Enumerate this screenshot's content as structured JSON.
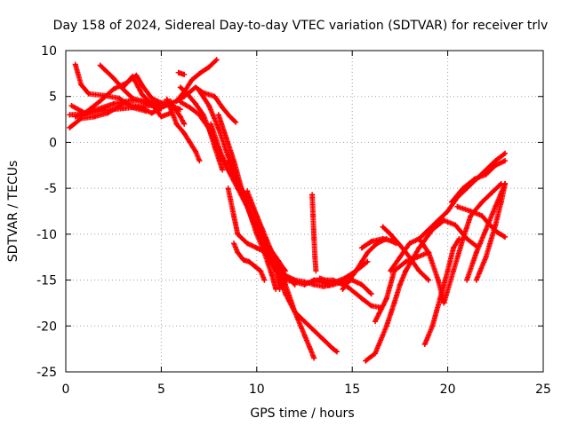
{
  "chart_data": {
    "type": "scatter",
    "title": "Day 158 of 2024, Sidereal Day-to-day VTEC variation (SDTVAR) for receiver trlv",
    "xlabel": "GPS time / hours",
    "ylabel": "SDTVAR / TECUs",
    "xlim": [
      0,
      25
    ],
    "ylim": [
      -25,
      10
    ],
    "xticks": [
      "0",
      "5",
      "10",
      "15",
      "20",
      "25"
    ],
    "yticks": [
      "10",
      "5",
      "0",
      "-5",
      "-10",
      "-15",
      "-20",
      "-25"
    ],
    "grid": true,
    "marker": "+",
    "color": "#ff0000",
    "series": [
      {
        "x": [
          0.2,
          0.8,
          1.5,
          2.2,
          3.0,
          3.8,
          4.5,
          5.0
        ],
        "y": [
          1.6,
          2.6,
          2.8,
          3.2,
          4.2,
          3.9,
          3.2,
          3.7
        ]
      },
      {
        "x": [
          0.2,
          1.0,
          2.0,
          3.0,
          4.0,
          5.0
        ],
        "y": [
          3.0,
          3.1,
          3.5,
          3.7,
          3.9,
          4.2
        ]
      },
      {
        "x": [
          0.5,
          0.8,
          1.2,
          2.0,
          2.8,
          3.5,
          4.2
        ],
        "y": [
          8.5,
          6.3,
          5.3,
          5.1,
          4.8,
          3.8,
          3.4
        ]
      },
      {
        "x": [
          0.3,
          1.0,
          1.8,
          2.5,
          3.2,
          3.7,
          4.0,
          4.5,
          5.0,
          5.5
        ],
        "y": [
          4.0,
          3.2,
          4.5,
          5.8,
          6.5,
          7.3,
          6.2,
          4.8,
          4.3,
          4.5
        ]
      },
      {
        "x": [
          1.8,
          2.5,
          3.0,
          3.5,
          4.0,
          4.5,
          5.0,
          5.5,
          6.0,
          6.2
        ],
        "y": [
          8.4,
          7.0,
          5.8,
          4.8,
          4.5,
          4.0,
          3.8,
          4.3,
          2.8,
          2.0
        ]
      },
      {
        "x": [
          0.5,
          1.5,
          2.5,
          3.5,
          4.5,
          5.5,
          6.0
        ],
        "y": [
          2.8,
          3.5,
          4.2,
          4.6,
          4.3,
          4.0,
          3.6
        ]
      },
      {
        "x": [
          3.0,
          3.5,
          4.0,
          4.5,
          5.0,
          5.5
        ],
        "y": [
          6.0,
          7.2,
          5.2,
          4.2,
          2.8,
          3.2
        ]
      },
      {
        "x": [
          4.3,
          5.0,
          5.8,
          6.2,
          6.6,
          7.0,
          7.5,
          7.9
        ],
        "y": [
          4.4,
          3.8,
          4.5,
          5.5,
          6.8,
          7.5,
          8.2,
          9.0
        ]
      },
      {
        "x": [
          5.3,
          5.8,
          6.2,
          6.5,
          6.8,
          7.0
        ],
        "y": [
          4.7,
          2.0,
          1.0,
          0.0,
          -1.0,
          -2.0
        ]
      },
      {
        "x": [
          5.8,
          6.2,
          6.8,
          7.2,
          7.8,
          8.2,
          8.6,
          8.9
        ],
        "y": [
          4.5,
          5.0,
          6.0,
          5.4,
          5.0,
          3.8,
          2.8,
          2.2
        ]
      },
      {
        "x": [
          5.9,
          6.2
        ],
        "y": [
          7.6,
          7.4
        ]
      },
      {
        "x": [
          6.0,
          6.5,
          7.0,
          7.5,
          7.8,
          8.2
        ],
        "y": [
          4.4,
          3.8,
          3.0,
          1.5,
          -0.5,
          -3.0
        ]
      },
      {
        "x": [
          6.0,
          6.4,
          6.8,
          7.2,
          7.6,
          8.0,
          8.5,
          9.0,
          9.5,
          10.0,
          10.3
        ],
        "y": [
          6.0,
          5.2,
          4.2,
          3.0,
          1.0,
          -1.0,
          -3.0,
          -4.5,
          -6.0,
          -8.0,
          -10.0
        ]
      },
      {
        "x": [
          7.0,
          7.5,
          8.0,
          8.5,
          9.0,
          9.5,
          10.0,
          10.5,
          11.0,
          11.5
        ],
        "y": [
          5.6,
          4.0,
          1.5,
          -1.5,
          -4.0,
          -7.0,
          -9.0,
          -11.0,
          -12.5,
          -14.0
        ]
      },
      {
        "x": [
          7.6,
          8.0,
          8.5,
          9.0,
          9.5,
          10.0,
          10.5,
          11.0,
          11.2
        ],
        "y": [
          2.0,
          -0.5,
          -3.0,
          -5.0,
          -7.0,
          -9.5,
          -12.0,
          -14.0,
          -16.0
        ]
      },
      {
        "x": [
          8.0,
          8.4,
          8.8,
          9.2,
          9.6,
          10.0,
          10.4,
          10.8,
          11.0
        ],
        "y": [
          3.0,
          0.5,
          -2.0,
          -5.0,
          -7.5,
          -10.0,
          -12.0,
          -14.5,
          -16.0
        ]
      },
      {
        "x": [
          8.5,
          9.0,
          9.5,
          10.0,
          10.5,
          11.0,
          11.5,
          12.0,
          12.5,
          13.0,
          13.5,
          13.8
        ],
        "y": [
          -2.0,
          -4.5,
          -7.0,
          -9.5,
          -12.0,
          -14.0,
          -15.0,
          -15.2,
          -15.5,
          -15.0,
          -15.3,
          -15.6
        ]
      },
      {
        "x": [
          8.5,
          8.8,
          9.0,
          9.5,
          10.0,
          10.5,
          11.0,
          11.5,
          12.0
        ],
        "y": [
          -5.0,
          -8.0,
          -10.0,
          -11.0,
          -11.5,
          -12.0,
          -13.0,
          -14.5,
          -15.5
        ]
      },
      {
        "x": [
          8.8,
          9.0,
          9.3,
          9.6,
          9.9,
          10.2,
          10.4
        ],
        "y": [
          -11.0,
          -12.0,
          -12.8,
          -13.0,
          -13.5,
          -14.0,
          -15.0
        ]
      },
      {
        "x": [
          9.5,
          10.0,
          10.5,
          11.0,
          11.5,
          12.0,
          12.5,
          13.0
        ],
        "y": [
          -5.3,
          -8.0,
          -10.5,
          -13.0,
          -15.5,
          -18.5,
          -21.0,
          -23.5
        ]
      },
      {
        "x": [
          10.5,
          11.0,
          11.5,
          12.0,
          12.5,
          13.0,
          13.5,
          14.0,
          14.2
        ],
        "y": [
          -11.0,
          -13.5,
          -16.5,
          -18.5,
          -19.5,
          -20.5,
          -21.5,
          -22.5,
          -22.8
        ]
      },
      {
        "x": [
          10.0,
          10.5,
          11.0,
          11.5,
          12.0,
          12.5,
          13.0,
          13.5,
          14.0,
          14.5,
          15.0,
          15.5,
          16.0
        ],
        "y": [
          -9.0,
          -11.5,
          -13.5,
          -14.5,
          -15.0,
          -15.2,
          -15.5,
          -15.7,
          -15.5,
          -15.2,
          -15.0,
          -15.5,
          -16.5
        ]
      },
      {
        "x": [
          12.9,
          12.95,
          13.0,
          13.05,
          13.1
        ],
        "y": [
          -5.7,
          -8.0,
          -10.5,
          -12.5,
          -14.0
        ]
      },
      {
        "x": [
          13.0,
          14.0,
          14.8,
          15.5,
          16.0,
          16.5
        ],
        "y": [
          -15.0,
          -15.0,
          -15.8,
          -17.0,
          -17.8,
          -18.0
        ]
      },
      {
        "x": [
          13.3,
          14.0,
          14.6,
          15.2,
          15.8
        ],
        "y": [
          -14.8,
          -15.3,
          -14.8,
          -14.0,
          -13.0
        ]
      },
      {
        "x": [
          14.5,
          15.2,
          15.8,
          16.3,
          16.8
        ],
        "y": [
          -16.0,
          -14.0,
          -12.0,
          -11.0,
          -10.5
        ]
      },
      {
        "x": [
          15.5,
          16.0,
          16.6,
          17.0,
          17.3
        ],
        "y": [
          -11.5,
          -10.8,
          -10.5,
          -10.7,
          -11.0
        ]
      },
      {
        "x": [
          15.7,
          16.2,
          16.8,
          17.2,
          17.5,
          17.8
        ],
        "y": [
          -23.8,
          -23.0,
          -20.0,
          -17.5,
          -15.5,
          -14.0
        ]
      },
      {
        "x": [
          16.2,
          16.8,
          17.2,
          17.8,
          18.4,
          19.0
        ],
        "y": [
          -19.5,
          -17.0,
          -14.0,
          -13.0,
          -12.5,
          -12.0
        ]
      },
      {
        "x": [
          16.6,
          17.0,
          17.5,
          18.0,
          18.5,
          19.0
        ],
        "y": [
          -9.2,
          -10.0,
          -11.2,
          -12.5,
          -14.0,
          -15.0
        ]
      },
      {
        "x": [
          17.0,
          17.5,
          18.0,
          18.5,
          19.0,
          19.5,
          19.8
        ],
        "y": [
          -14.0,
          -12.5,
          -11.0,
          -10.5,
          -12.0,
          -15.0,
          -17.5
        ]
      },
      {
        "x": [
          18.8,
          19.2,
          19.6,
          20.0,
          20.3,
          20.6
        ],
        "y": [
          -22.0,
          -20.0,
          -17.0,
          -14.0,
          -11.5,
          -10.5
        ]
      },
      {
        "x": [
          17.8,
          18.5,
          19.2,
          19.8,
          20.4,
          21.0,
          21.5
        ],
        "y": [
          -14.0,
          -11.5,
          -9.5,
          -8.5,
          -9.0,
          -10.5,
          -11.3
        ]
      },
      {
        "x": [
          18.5,
          19.0,
          19.5,
          20.0,
          20.5,
          21.0,
          21.5,
          22.0,
          22.5,
          23.0
        ],
        "y": [
          -10.5,
          -9.5,
          -8.5,
          -7.5,
          -6.0,
          -5.0,
          -4.0,
          -3.0,
          -2.0,
          -1.2
        ]
      },
      {
        "x": [
          19.8,
          20.3,
          20.8,
          21.2,
          21.8,
          22.3,
          22.8
        ],
        "y": [
          -17.5,
          -14.0,
          -10.5,
          -8.0,
          -6.5,
          -5.5,
          -4.5
        ]
      },
      {
        "x": [
          20.2,
          20.8,
          21.4,
          22.0,
          22.5,
          23.0
        ],
        "y": [
          -6.5,
          -5.0,
          -4.0,
          -3.5,
          -2.5,
          -2.0
        ]
      },
      {
        "x": [
          20.5,
          21.2,
          21.8,
          22.2,
          22.6,
          23.0
        ],
        "y": [
          -7.0,
          -7.5,
          -8.0,
          -9.0,
          -9.8,
          -10.3
        ]
      },
      {
        "x": [
          21.0,
          21.5,
          22.0,
          22.5,
          23.0
        ],
        "y": [
          -15.0,
          -12.0,
          -9.5,
          -7.0,
          -4.5
        ]
      },
      {
        "x": [
          21.5,
          22.0,
          22.5,
          22.8,
          23.0
        ],
        "y": [
          -15.0,
          -12.5,
          -9.0,
          -6.5,
          -4.5
        ]
      }
    ]
  }
}
